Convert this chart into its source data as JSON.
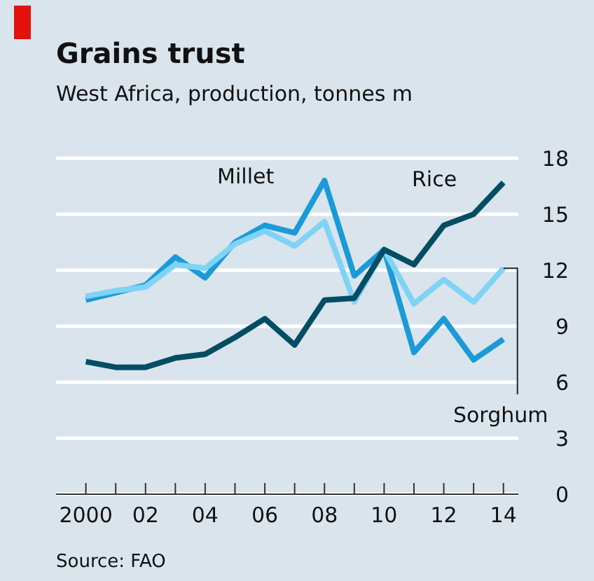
{
  "chart_data": {
    "type": "line",
    "title": "Grains trust",
    "subtitle": "West Africa, production, tonnes m",
    "annotations": [
      "Source: FAO"
    ],
    "x": [
      2000,
      2001,
      2002,
      2003,
      2004,
      2005,
      2006,
      2007,
      2008,
      2009,
      2010,
      2011,
      2012,
      2013,
      2014
    ],
    "series": [
      {
        "name": "Millet",
        "color": "#1a9bd7",
        "values": [
          10.4,
          10.8,
          11.2,
          12.7,
          11.6,
          13.5,
          14.4,
          14.0,
          16.8,
          11.7,
          13.1,
          7.6,
          9.4,
          7.2,
          8.3
        ]
      },
      {
        "name": "Sorghum",
        "color": "#7fd3f5",
        "values": [
          10.6,
          10.9,
          11.1,
          12.3,
          12.1,
          13.4,
          14.1,
          13.3,
          14.6,
          10.3,
          13.1,
          10.2,
          11.5,
          10.3,
          12.1
        ]
      },
      {
        "name": "Rice",
        "color": "#004d64",
        "values": [
          7.1,
          6.8,
          6.8,
          7.3,
          7.5,
          8.4,
          9.4,
          8.0,
          10.4,
          10.5,
          13.1,
          12.3,
          14.4,
          15.0,
          16.7
        ]
      }
    ],
    "xlim": [
      1999,
      2014.5
    ],
    "xticks": [
      {
        "value": 2000,
        "label": "2000"
      },
      {
        "value": 2001,
        "label": null
      },
      {
        "value": 2002,
        "label": "02"
      },
      {
        "value": 2003,
        "label": null
      },
      {
        "value": 2004,
        "label": "04"
      },
      {
        "value": 2005,
        "label": null
      },
      {
        "value": 2006,
        "label": "06"
      },
      {
        "value": 2007,
        "label": null
      },
      {
        "value": 2008,
        "label": "08"
      },
      {
        "value": 2009,
        "label": null
      },
      {
        "value": 2010,
        "label": "10"
      },
      {
        "value": 2011,
        "label": null
      },
      {
        "value": 2012,
        "label": "12"
      },
      {
        "value": 2013,
        "label": null
      },
      {
        "value": 2014,
        "label": "14"
      }
    ],
    "ylim": [
      0,
      18
    ],
    "yticks": [
      0,
      3,
      6,
      9,
      12,
      15,
      18
    ],
    "grid": "y",
    "legend": false,
    "marker": "none",
    "line_style": "solid"
  }
}
